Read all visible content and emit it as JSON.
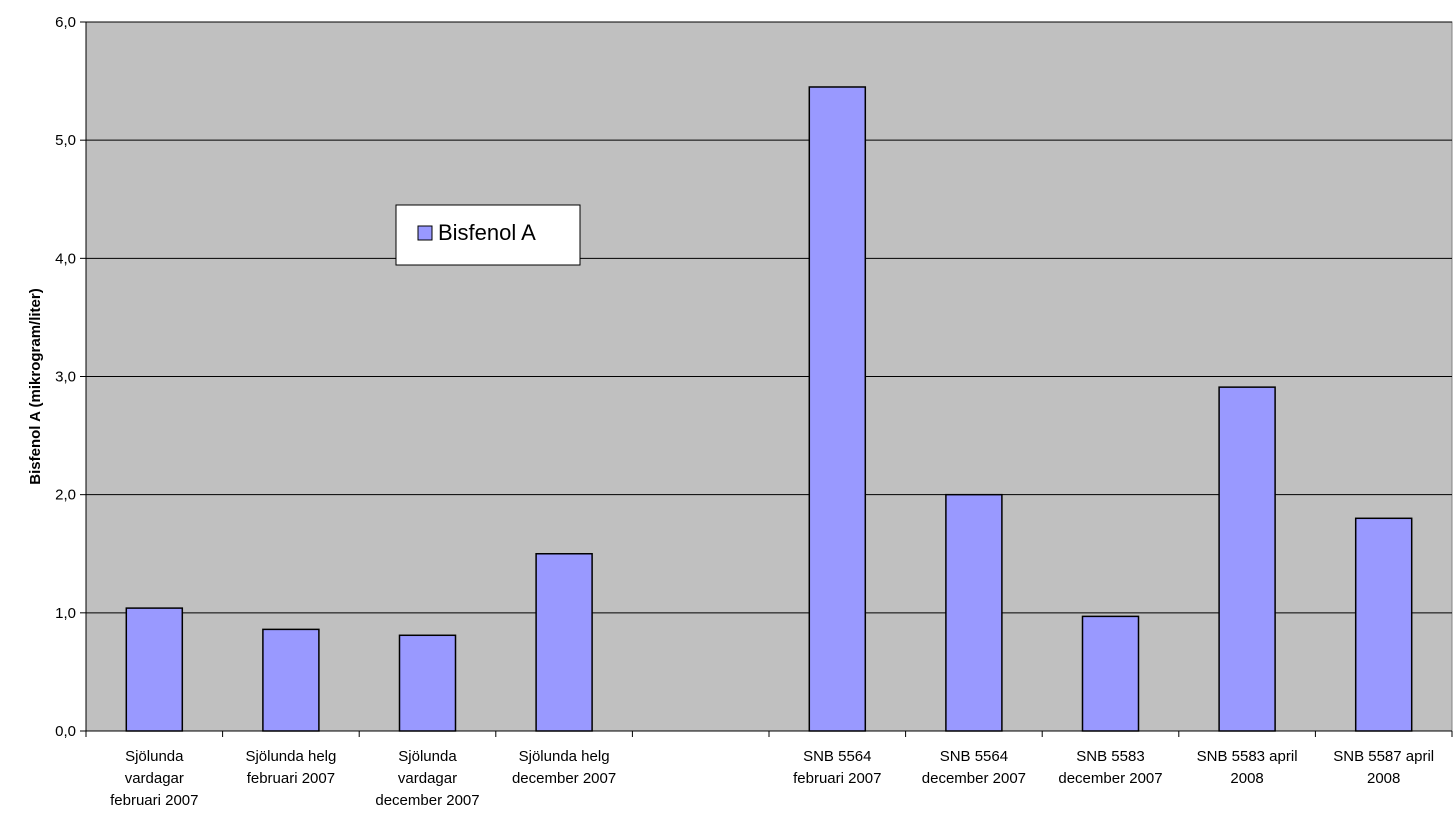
{
  "chart_data": {
    "type": "bar",
    "ylabel": "Bisfenol A (mikrogram/liter)",
    "xlabel": "",
    "ylim": [
      0,
      6
    ],
    "ytick_step": 1,
    "ytick_labels": [
      "0,0",
      "1,0",
      "2,0",
      "3,0",
      "4,0",
      "5,0",
      "6,0"
    ],
    "grid": true,
    "legend_position": "upper-left-center",
    "categories": [
      [
        "Sjölunda",
        "vardagar",
        "februari 2007"
      ],
      [
        "Sjölunda helg",
        "februari 2007"
      ],
      [
        "Sjölunda",
        "vardagar",
        "december 2007"
      ],
      [
        "Sjölunda helg",
        "december 2007"
      ],
      [],
      [
        "SNB 5564",
        "februari 2007"
      ],
      [
        "SNB 5564",
        "december 2007"
      ],
      [
        "SNB 5583",
        "december 2007"
      ],
      [
        "SNB 5583 april",
        "2008"
      ],
      [
        "SNB 5587 april",
        "2008"
      ]
    ],
    "series": [
      {
        "name": "Bisfenol A",
        "values": [
          1.04,
          0.86,
          0.81,
          1.5,
          null,
          5.45,
          2.0,
          0.97,
          2.91,
          1.8
        ]
      }
    ],
    "colors": {
      "plot_background": "#c0c0c0",
      "bar_fill": "#9999ff",
      "bar_stroke": "#000000",
      "gridline": "#000000"
    }
  }
}
